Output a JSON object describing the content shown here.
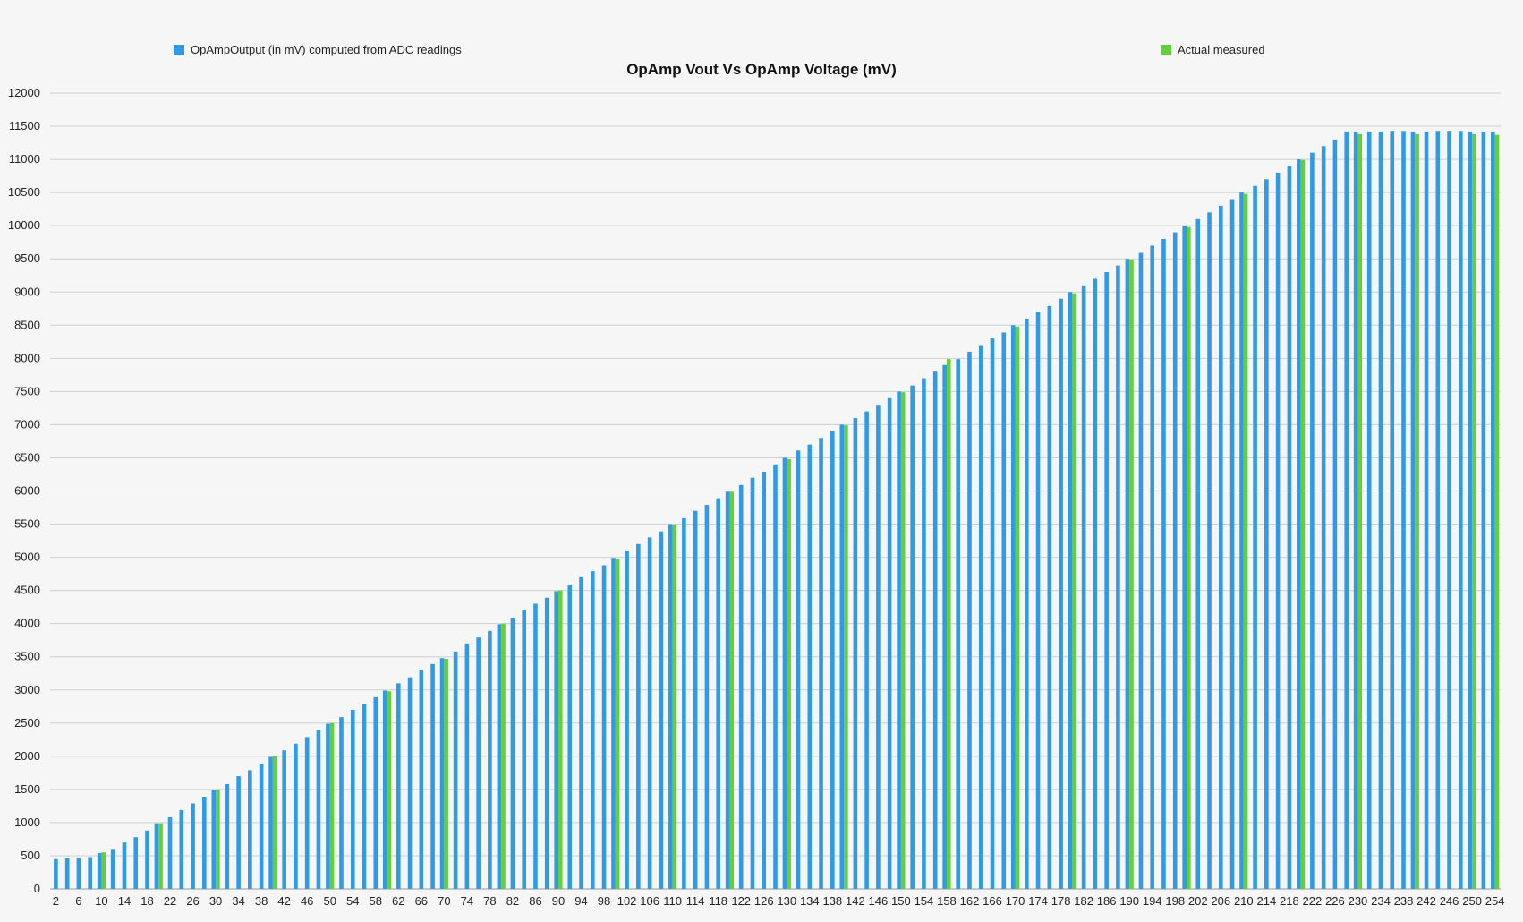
{
  "colors": {
    "computed": "#2f9ae6",
    "measured": "#62cf3b",
    "grid": "#cfcfcf",
    "background": "#f6f6f6"
  },
  "chart_data": {
    "type": "bar",
    "title": "OpAmp Vout Vs OpAmp Voltage (mV)",
    "xlabel": "",
    "ylabel": "",
    "ylim": [
      0,
      12000
    ],
    "y_ticks": [
      0,
      500,
      1000,
      1500,
      2000,
      2500,
      3000,
      3500,
      4000,
      4500,
      5000,
      5500,
      6000,
      6500,
      7000,
      7500,
      8000,
      8500,
      9000,
      9500,
      10000,
      10500,
      11000,
      11500,
      12000
    ],
    "grid": true,
    "legend_position": "top",
    "categories": [
      2,
      4,
      6,
      8,
      10,
      12,
      14,
      16,
      18,
      20,
      22,
      24,
      26,
      28,
      30,
      32,
      34,
      36,
      38,
      40,
      42,
      44,
      46,
      48,
      50,
      52,
      54,
      56,
      58,
      60,
      62,
      64,
      66,
      68,
      70,
      72,
      74,
      76,
      78,
      80,
      82,
      84,
      86,
      88,
      90,
      92,
      94,
      96,
      98,
      100,
      102,
      104,
      106,
      108,
      110,
      112,
      114,
      116,
      118,
      120,
      122,
      124,
      126,
      128,
      130,
      132,
      134,
      136,
      138,
      140,
      142,
      144,
      146,
      148,
      150,
      152,
      154,
      156,
      158,
      160,
      162,
      164,
      166,
      168,
      170,
      172,
      174,
      176,
      178,
      180,
      182,
      184,
      186,
      188,
      190,
      192,
      194,
      196,
      198,
      200,
      202,
      204,
      206,
      208,
      210,
      212,
      214,
      216,
      218,
      220,
      222,
      224,
      226,
      228,
      230,
      232,
      234,
      236,
      238,
      240,
      242,
      244,
      246,
      248,
      250,
      252,
      254
    ],
    "tick_labels": [
      2,
      6,
      10,
      14,
      18,
      22,
      26,
      30,
      34,
      38,
      42,
      46,
      50,
      54,
      58,
      62,
      66,
      70,
      74,
      78,
      82,
      86,
      90,
      94,
      98,
      102,
      106,
      110,
      114,
      118,
      122,
      126,
      130,
      134,
      138,
      142,
      146,
      150,
      154,
      158,
      162,
      166,
      170,
      174,
      178,
      182,
      186,
      190,
      194,
      198,
      202,
      206,
      210,
      214,
      218,
      222,
      226,
      230,
      234,
      238,
      242,
      246,
      250,
      254
    ],
    "series": [
      {
        "name": "OpAmpOutput (in mV) computed from ADC readings",
        "values": [
          450,
          460,
          465,
          480,
          540,
          590,
          700,
          780,
          880,
          990,
          1080,
          1190,
          1290,
          1390,
          1490,
          1580,
          1700,
          1790,
          1890,
          1990,
          2090,
          2190,
          2290,
          2390,
          2490,
          2590,
          2700,
          2790,
          2890,
          2990,
          3100,
          3190,
          3300,
          3390,
          3480,
          3580,
          3700,
          3790,
          3890,
          3990,
          4090,
          4200,
          4300,
          4390,
          4490,
          4590,
          4700,
          4790,
          4880,
          4990,
          5090,
          5200,
          5300,
          5390,
          5500,
          5590,
          5700,
          5790,
          5890,
          5990,
          6090,
          6200,
          6290,
          6400,
          6500,
          6610,
          6700,
          6800,
          6900,
          7000,
          7100,
          7200,
          7300,
          7400,
          7500,
          7590,
          7700,
          7800,
          7900,
          7990,
          8100,
          8200,
          8300,
          8390,
          8500,
          8600,
          8700,
          8790,
          8900,
          9000,
          9100,
          9200,
          9300,
          9400,
          9500,
          9590,
          9700,
          9800,
          9900,
          10000,
          10100,
          10200,
          10300,
          10400,
          10500,
          10600,
          10700,
          10800,
          10900,
          11000,
          11100,
          11200,
          11300,
          11420,
          11420,
          11420,
          11420,
          11430,
          11430,
          11420,
          11420,
          11430,
          11430,
          11430,
          11420,
          11420,
          11420
        ]
      },
      {
        "name": "Actual measured",
        "values": [
          null,
          null,
          null,
          null,
          550,
          null,
          null,
          null,
          null,
          990,
          null,
          null,
          null,
          null,
          1500,
          null,
          null,
          null,
          null,
          2010,
          null,
          null,
          null,
          null,
          2500,
          null,
          null,
          null,
          null,
          2980,
          null,
          null,
          null,
          null,
          3470,
          null,
          null,
          null,
          null,
          4000,
          null,
          null,
          null,
          null,
          4500,
          null,
          null,
          null,
          null,
          4980,
          null,
          null,
          null,
          null,
          5480,
          null,
          null,
          null,
          null,
          5990,
          null,
          null,
          null,
          null,
          6480,
          null,
          null,
          null,
          null,
          6990,
          null,
          null,
          null,
          null,
          7490,
          null,
          null,
          null,
          7990,
          null,
          null,
          null,
          null,
          null,
          8480,
          null,
          null,
          null,
          null,
          8980,
          null,
          null,
          null,
          null,
          9490,
          null,
          null,
          null,
          null,
          9980,
          null,
          null,
          null,
          null,
          10480,
          null,
          null,
          null,
          null,
          10990,
          null,
          null,
          null,
          null,
          11380,
          null,
          null,
          null,
          null,
          11380,
          null,
          null,
          null,
          null,
          11380,
          null,
          11370
        ]
      }
    ]
  }
}
